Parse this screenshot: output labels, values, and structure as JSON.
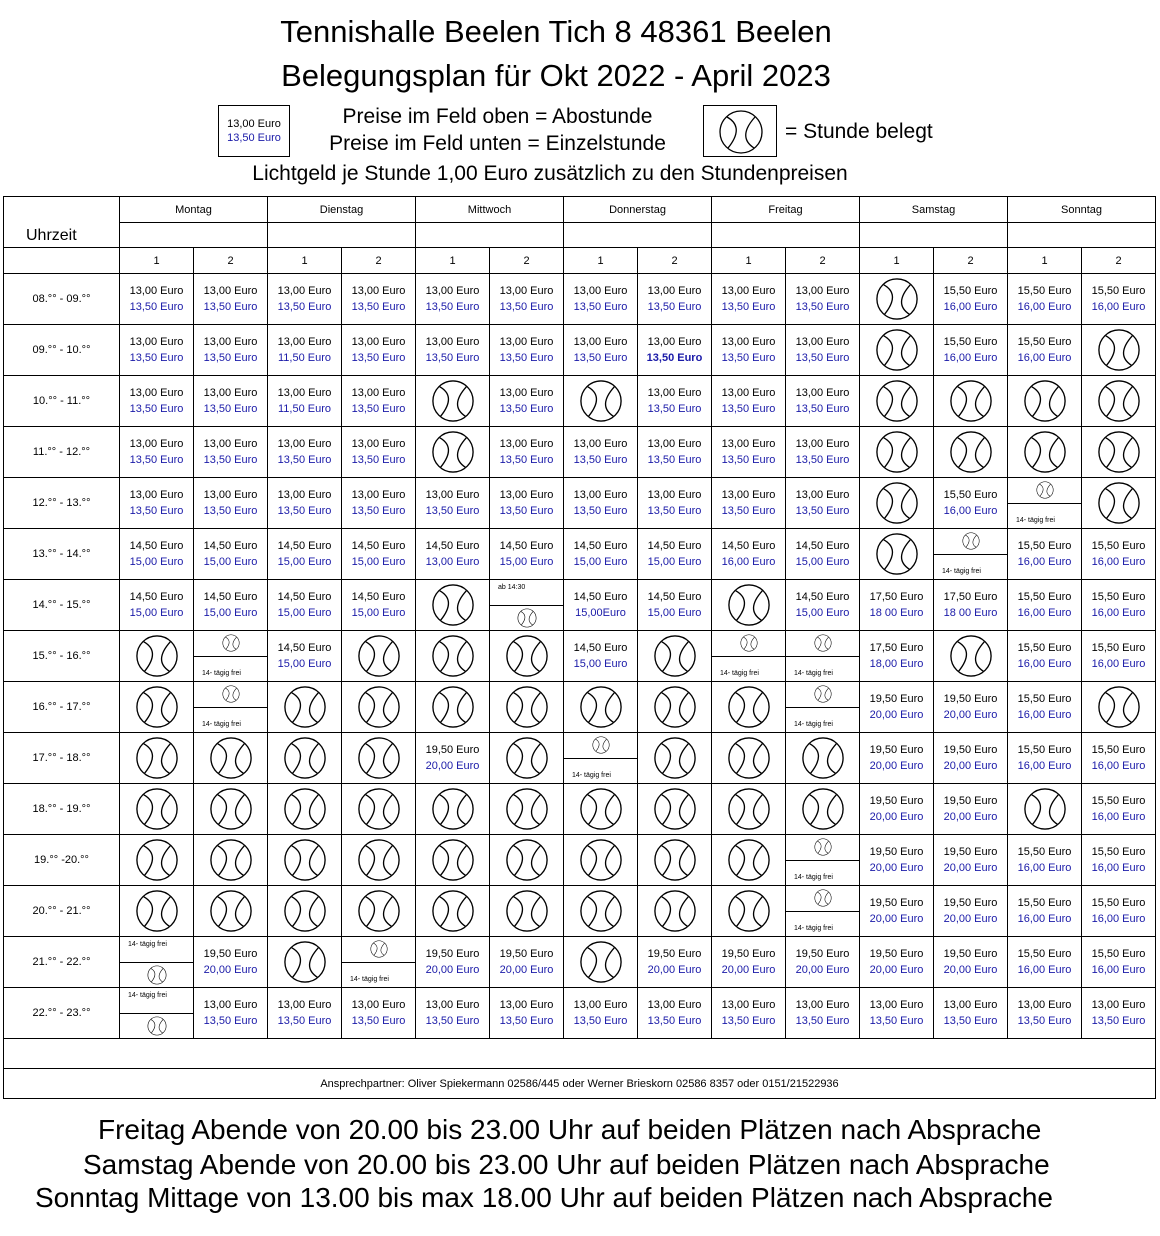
{
  "header": {
    "line1": "Tennishalle Beelen Tich 8 48361 Beelen",
    "line2": "Belegungsplan für Okt 2022 - April 2023"
  },
  "legend": {
    "sample_abo": "13,00 Euro",
    "sample_einzel": "13,50 Euro",
    "text_top": "Preise im Feld oben = Abostunde",
    "text_bottom": "Preise im Feld unten = Einzelstunde",
    "belegt": "= Stunde belegt",
    "lichtgeld": "Lichtgeld je Stunde 1,00 Euro zusätzlich zu den Stundenpreisen"
  },
  "table": {
    "uhrzeit_label": "Uhrzeit",
    "days": [
      "Montag",
      "Dienstag",
      "Mittwoch",
      "Donnerstag",
      "Freitag",
      "Samstag",
      "Sonntag"
    ],
    "courts": [
      "1",
      "2",
      "1",
      "2",
      "1",
      "2",
      "1",
      "2",
      "1",
      "2",
      "1",
      "2",
      "1",
      "2"
    ],
    "rows": [
      {
        "time": "08.°° - 09.°°",
        "cells": [
          [
            "p",
            "13,00 Euro",
            "13,50 Euro"
          ],
          [
            "p",
            "13,00 Euro",
            "13,50 Euro"
          ],
          [
            "p",
            "13,00 Euro",
            "13,50 Euro"
          ],
          [
            "p",
            "13,00 Euro",
            "13,50 Euro"
          ],
          [
            "p",
            "13,00 Euro",
            "13,50 Euro"
          ],
          [
            "p",
            "13,00 Euro",
            "13,50 Euro"
          ],
          [
            "p",
            "13,00 Euro",
            "13,50 Euro"
          ],
          [
            "p",
            "13,00 Euro",
            "13,50 Euro"
          ],
          [
            "p",
            "13,00 Euro",
            "13,50 Euro"
          ],
          [
            "p",
            "13,00 Euro",
            "13,50 Euro"
          ],
          [
            "b"
          ],
          [
            "p",
            "15,50 Euro",
            "16,00 Euro"
          ],
          [
            "p",
            "15,50 Euro",
            "16,00 Euro"
          ],
          [
            "p",
            "15,50 Euro",
            "16,00 Euro"
          ]
        ]
      },
      {
        "time": "09.°° - 10.°°",
        "cells": [
          [
            "p",
            "13,00 Euro",
            "13,50 Euro"
          ],
          [
            "p",
            "13,00 Euro",
            "13,50 Euro"
          ],
          [
            "p",
            "13,00 Euro",
            "11,50 Euro"
          ],
          [
            "p",
            "13,00 Euro",
            "13,50 Euro"
          ],
          [
            "p",
            "13,00 Euro",
            "13,50 Euro"
          ],
          [
            "p",
            "13,00 Euro",
            "13,50 Euro"
          ],
          [
            "p",
            "13,00 Euro",
            "13,50 Euro"
          ],
          [
            "pb",
            "13,00 Euro",
            "13,50 Euro"
          ],
          [
            "p",
            "13,00 Euro",
            "13,50 Euro"
          ],
          [
            "p",
            "13,00 Euro",
            "13,50 Euro"
          ],
          [
            "b"
          ],
          [
            "p",
            "15,50 Euro",
            "16,00 Euro"
          ],
          [
            "p",
            "15,50 Euro",
            "16,00 Euro"
          ],
          [
            "b"
          ]
        ]
      },
      {
        "time": "10.°° - 11.°°",
        "cells": [
          [
            "p",
            "13,00 Euro",
            "13,50 Euro"
          ],
          [
            "p",
            "13,00 Euro",
            "13,50 Euro"
          ],
          [
            "p",
            "13,00 Euro",
            "11,50 Euro"
          ],
          [
            "p",
            "13,00 Euro",
            "13,50 Euro"
          ],
          [
            "b"
          ],
          [
            "p",
            "13,00 Euro",
            "13,50 Euro"
          ],
          [
            "b"
          ],
          [
            "p",
            "13,00 Euro",
            "13,50 Euro"
          ],
          [
            "p",
            "13,00 Euro",
            "13,50 Euro"
          ],
          [
            "p",
            "13,00 Euro",
            "13,50 Euro"
          ],
          [
            "b"
          ],
          [
            "b"
          ],
          [
            "b"
          ],
          [
            "b"
          ]
        ]
      },
      {
        "time": "11.°° - 12.°°",
        "cells": [
          [
            "p",
            "13,00 Euro",
            "13,50 Euro"
          ],
          [
            "p",
            "13,00 Euro",
            "13,50 Euro"
          ],
          [
            "p",
            "13,00 Euro",
            "13,50 Euro"
          ],
          [
            "p",
            "13,00 Euro",
            "13,50 Euro"
          ],
          [
            "b"
          ],
          [
            "p",
            "13,00 Euro",
            "13,50 Euro"
          ],
          [
            "p",
            "13,00 Euro",
            "13,50 Euro"
          ],
          [
            "p",
            "13,00 Euro",
            "13,50 Euro"
          ],
          [
            "p",
            "13,00 Euro",
            "13,50 Euro"
          ],
          [
            "p",
            "13,00 Euro",
            "13,50 Euro"
          ],
          [
            "b"
          ],
          [
            "b"
          ],
          [
            "b"
          ],
          [
            "b"
          ]
        ]
      },
      {
        "time": "12.°° - 13.°°",
        "cells": [
          [
            "p",
            "13,00 Euro",
            "13,50 Euro"
          ],
          [
            "p",
            "13,00 Euro",
            "13,50 Euro"
          ],
          [
            "p",
            "13,00 Euro",
            "13,50 Euro"
          ],
          [
            "p",
            "13,00 Euro",
            "13,50 Euro"
          ],
          [
            "p",
            "13,00 Euro",
            "13,50 Euro"
          ],
          [
            "p",
            "13,00 Euro",
            "13,50 Euro"
          ],
          [
            "p",
            "13,00 Euro",
            "13,50 Euro"
          ],
          [
            "p",
            "13,00 Euro",
            "13,50 Euro"
          ],
          [
            "p",
            "13,00 Euro",
            "13,50 Euro"
          ],
          [
            "p",
            "13,00 Euro",
            "13,50 Euro"
          ],
          [
            "b"
          ],
          [
            "p",
            "15,50 Euro",
            "16,00 Euro"
          ],
          [
            "ht",
            "14- tägig frei"
          ],
          [
            "b"
          ]
        ]
      },
      {
        "time": "13.°° - 14.°°",
        "cells": [
          [
            "p",
            "14,50 Euro",
            "15,00 Euro"
          ],
          [
            "p",
            "14,50 Euro",
            "15,00 Euro"
          ],
          [
            "p",
            "14,50 Euro",
            "15,00 Euro"
          ],
          [
            "p",
            "14,50 Euro",
            "15,00 Euro"
          ],
          [
            "p",
            "14,50 Euro",
            "13,00 Euro"
          ],
          [
            "p",
            "14,50 Euro",
            "15,00 Euro"
          ],
          [
            "p",
            "14,50 Euro",
            "15,00 Euro"
          ],
          [
            "p",
            "14,50 Euro",
            "15,00 Euro"
          ],
          [
            "p",
            "14,50 Euro",
            "16,00 Euro"
          ],
          [
            "p",
            "14,50 Euro",
            "15,00 Euro"
          ],
          [
            "b"
          ],
          [
            "ht",
            "14- tägig frei"
          ],
          [
            "p",
            "15,50 Euro",
            "16,00 Euro"
          ],
          [
            "p",
            "15,50 Euro",
            "16,00 Euro"
          ]
        ]
      },
      {
        "time": "14.°° - 15.°°",
        "cells": [
          [
            "p",
            "14,50 Euro",
            "15,00 Euro"
          ],
          [
            "p",
            "14,50 Euro",
            "15,00 Euro"
          ],
          [
            "p",
            "14,50 Euro",
            "15,00 Euro"
          ],
          [
            "p",
            "14,50 Euro",
            "15,00 Euro"
          ],
          [
            "b"
          ],
          [
            "hb",
            "ab 14:30"
          ],
          [
            "p",
            "14,50 Euro",
            "15,00Euro"
          ],
          [
            "p",
            "14,50 Euro",
            "15,00 Euro"
          ],
          [
            "b"
          ],
          [
            "p",
            "14,50 Euro",
            "15,00 Euro"
          ],
          [
            "p",
            "17,50 Euro",
            "18 00 Euro"
          ],
          [
            "p",
            "17,50 Euro",
            "18 00 Euro"
          ],
          [
            "p",
            "15,50 Euro",
            "16,00 Euro"
          ],
          [
            "p",
            "15,50 Euro",
            "16,00 Euro"
          ]
        ]
      },
      {
        "time": "15.°° - 16.°°",
        "cells": [
          [
            "b"
          ],
          [
            "ht",
            "14- tägig frei"
          ],
          [
            "p",
            "14,50 Euro",
            "15,00 Euro"
          ],
          [
            "b"
          ],
          [
            "b"
          ],
          [
            "b"
          ],
          [
            "p",
            "14,50 Euro",
            "15,00 Euro"
          ],
          [
            "b"
          ],
          [
            "ht",
            "14- tägig frei"
          ],
          [
            "ht",
            "14- tägig frei"
          ],
          [
            "p",
            "17,50 Euro",
            "18,00 Euro"
          ],
          [
            "b"
          ],
          [
            "p",
            "15,50 Euro",
            "16,00 Euro"
          ],
          [
            "p",
            "15,50 Euro",
            "16,00 Euro"
          ]
        ]
      },
      {
        "time": "16.°° - 17.°°",
        "cells": [
          [
            "b"
          ],
          [
            "ht",
            "14- tägig frei"
          ],
          [
            "b"
          ],
          [
            "b"
          ],
          [
            "b"
          ],
          [
            "b"
          ],
          [
            "b"
          ],
          [
            "b"
          ],
          [
            "b"
          ],
          [
            "ht",
            "14- tägig frei"
          ],
          [
            "p",
            "19,50 Euro",
            "20,00 Euro"
          ],
          [
            "p",
            "19,50 Euro",
            "20,00 Euro"
          ],
          [
            "p",
            "15,50 Euro",
            "16,00 Euro"
          ],
          [
            "b"
          ]
        ]
      },
      {
        "time": "17.°° - 18.°°",
        "cells": [
          [
            "b"
          ],
          [
            "b"
          ],
          [
            "b"
          ],
          [
            "b"
          ],
          [
            "p",
            "19,50 Euro",
            "20,00 Euro"
          ],
          [
            "b"
          ],
          [
            "ht",
            "14- tägig frei"
          ],
          [
            "b"
          ],
          [
            "b"
          ],
          [
            "b"
          ],
          [
            "p",
            "19,50 Euro",
            "20,00 Euro"
          ],
          [
            "p",
            "19,50 Euro",
            "20,00 Euro"
          ],
          [
            "p",
            "15,50 Euro",
            "16,00 Euro"
          ],
          [
            "p",
            "15,50 Euro",
            "16,00 Euro"
          ]
        ]
      },
      {
        "time": "18.°° - 19.°°",
        "cells": [
          [
            "b"
          ],
          [
            "b"
          ],
          [
            "b"
          ],
          [
            "b"
          ],
          [
            "b"
          ],
          [
            "b"
          ],
          [
            "b"
          ],
          [
            "b"
          ],
          [
            "b"
          ],
          [
            "b"
          ],
          [
            "p",
            "19,50 Euro",
            "20,00 Euro"
          ],
          [
            "p",
            "19,50 Euro",
            "20,00 Euro"
          ],
          [
            "b"
          ],
          [
            "p",
            "15,50 Euro",
            "16,00 Euro"
          ]
        ]
      },
      {
        "time": "19.°° -20.°°",
        "cells": [
          [
            "b"
          ],
          [
            "b"
          ],
          [
            "b"
          ],
          [
            "b"
          ],
          [
            "b"
          ],
          [
            "b"
          ],
          [
            "b"
          ],
          [
            "b"
          ],
          [
            "b"
          ],
          [
            "ht",
            "14- tägig frei"
          ],
          [
            "p",
            "19,50 Euro",
            "20,00 Euro"
          ],
          [
            "p",
            "19,50 Euro",
            "20,00 Euro"
          ],
          [
            "p",
            "15,50 Euro",
            "16,00 Euro"
          ],
          [
            "p",
            "15,50 Euro",
            "16,00 Euro"
          ]
        ]
      },
      {
        "time": "20.°° - 21.°°",
        "cells": [
          [
            "b"
          ],
          [
            "b"
          ],
          [
            "b"
          ],
          [
            "b"
          ],
          [
            "b"
          ],
          [
            "b"
          ],
          [
            "b"
          ],
          [
            "b"
          ],
          [
            "b"
          ],
          [
            "ht",
            "14- tägig frei"
          ],
          [
            "p",
            "19,50 Euro",
            "20,00 Euro"
          ],
          [
            "p",
            "19,50 Euro",
            "20,00 Euro"
          ],
          [
            "p",
            "15,50 Euro",
            "16,00 Euro"
          ],
          [
            "p",
            "15,50 Euro",
            "16,00 Euro"
          ]
        ]
      },
      {
        "time": "21.°° - 22.°°",
        "cells": [
          [
            "hb",
            "14- tägig frei"
          ],
          [
            "p",
            "19,50 Euro",
            "20,00 Euro"
          ],
          [
            "b"
          ],
          [
            "ht",
            "14- tägig frei"
          ],
          [
            "p",
            "19,50 Euro",
            "20,00 Euro"
          ],
          [
            "p",
            "19,50 Euro",
            "20,00 Euro"
          ],
          [
            "b"
          ],
          [
            "p",
            "19,50 Euro",
            "20,00 Euro"
          ],
          [
            "p",
            "19,50 Euro",
            "20,00 Euro"
          ],
          [
            "p",
            "19,50 Euro",
            "20,00 Euro"
          ],
          [
            "p",
            "19,50 Euro",
            "20,00 Euro"
          ],
          [
            "p",
            "19,50 Euro",
            "20,00 Euro"
          ],
          [
            "p",
            "15,50 Euro",
            "16,00 Euro"
          ],
          [
            "p",
            "15,50 Euro",
            "16,00 Euro"
          ]
        ]
      },
      {
        "time": "22.°° - 23.°°",
        "cells": [
          [
            "hb",
            "14- tägig frei"
          ],
          [
            "p",
            "13,00 Euro",
            "13,50 Euro"
          ],
          [
            "p",
            "13,00 Euro",
            "13,50 Euro"
          ],
          [
            "p",
            "13,00 Euro",
            "13,50 Euro"
          ],
          [
            "p",
            "13,00 Euro",
            "13,50 Euro"
          ],
          [
            "p",
            "13,00 Euro",
            "13,50 Euro"
          ],
          [
            "p",
            "13,00 Euro",
            "13,50 Euro"
          ],
          [
            "p",
            "13,00 Euro",
            "13,50 Euro"
          ],
          [
            "p",
            "13,00 Euro",
            "13,50 Euro"
          ],
          [
            "p",
            "13,00 Euro",
            "13,50 Euro"
          ],
          [
            "p",
            "13,00 Euro",
            "13,50 Euro"
          ],
          [
            "p",
            "13,00 Euro",
            "13,50 Euro"
          ],
          [
            "p",
            "13,00 Euro",
            "13,50 Euro"
          ],
          [
            "p",
            "13,00 Euro",
            "13,50 Euro"
          ]
        ]
      }
    ],
    "contact": "Ansprechpartner: Oliver Spiekermann 02586/445  oder Werner Brieskorn 02586 8357 oder 0151/21522936"
  },
  "footer": {
    "line1": "Freitag Abende von 20.00 bis 23.00 Uhr auf beiden Plätzen nach Absprache",
    "line2": "Samstag Abende von 20.00 bis 23.00 Uhr auf beiden Plätzen nach Absprache",
    "line3": "Sonntag Mittage von 13.00 bis max 18.00 Uhr auf beiden Plätzen nach Absprache"
  },
  "colors": {
    "einzel_price": "#1a1aa8",
    "lines": "#000000"
  },
  "icons": {
    "belegt": "tennis-ball-icon"
  }
}
